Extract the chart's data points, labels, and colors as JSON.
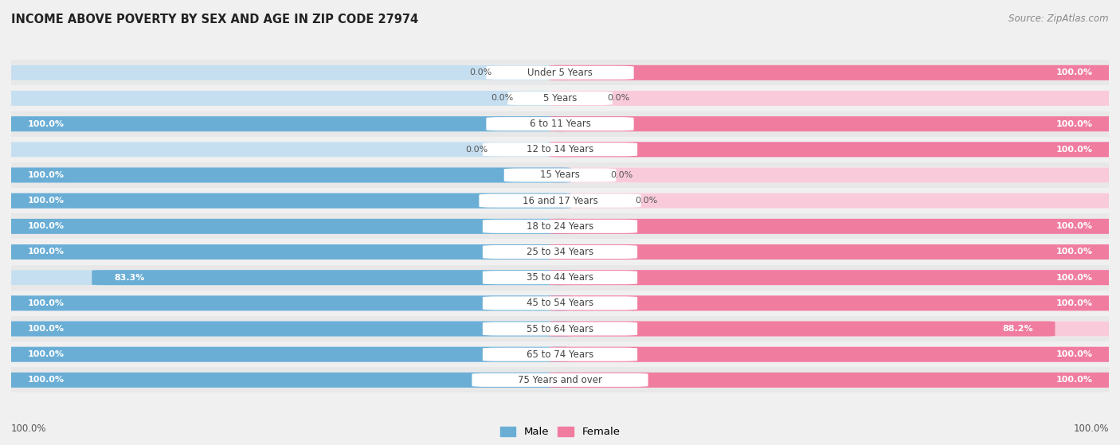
{
  "title": "INCOME ABOVE POVERTY BY SEX AND AGE IN ZIP CODE 27974",
  "source": "Source: ZipAtlas.com",
  "categories": [
    "Under 5 Years",
    "5 Years",
    "6 to 11 Years",
    "12 to 14 Years",
    "15 Years",
    "16 and 17 Years",
    "18 to 24 Years",
    "25 to 34 Years",
    "35 to 44 Years",
    "45 to 54 Years",
    "55 to 64 Years",
    "65 to 74 Years",
    "75 Years and over"
  ],
  "male_values": [
    0.0,
    0.0,
    100.0,
    0.0,
    100.0,
    100.0,
    100.0,
    100.0,
    83.3,
    100.0,
    100.0,
    100.0,
    100.0
  ],
  "female_values": [
    100.0,
    0.0,
    100.0,
    100.0,
    0.0,
    0.0,
    100.0,
    100.0,
    100.0,
    100.0,
    88.2,
    100.0,
    100.0
  ],
  "male_color": "#6aaed6",
  "female_color": "#f07ca0",
  "male_light_color": "#c6dff0",
  "female_light_color": "#f9cad9",
  "bg_color": "#f0f0f0",
  "row_bg_color": "#e8e8e8",
  "bar_bg_color": "#ffffff",
  "text_color": "#444444",
  "title_color": "#222222",
  "label_color": "#555555",
  "white_text": "#ffffff",
  "legend_male": "Male",
  "legend_female": "Female"
}
